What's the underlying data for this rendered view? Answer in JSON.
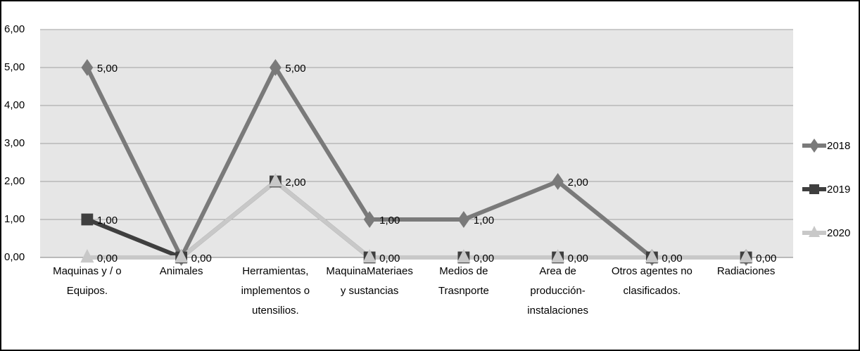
{
  "chart_data": {
    "type": "line",
    "categories": [
      "Maquinas y / o Equipos.",
      "Animales",
      "Herramientas, implementos o utensilios.",
      "MaquinaMateriaes y sustancias",
      "Medios de Trasnporte",
      "Area de producción- instalaciones",
      "Otros agentes no clasificados.",
      "Radiaciones"
    ],
    "series": [
      {
        "name": "2018",
        "color": "#7a7a7a",
        "marker": "diamond",
        "values": [
          5,
          0,
          5,
          1,
          1,
          2,
          0,
          0
        ],
        "value_labels": [
          "5,00",
          null,
          "5,00",
          "1,00",
          "1,00",
          "2,00",
          null,
          null
        ]
      },
      {
        "name": "2019",
        "color": "#3f3f3f",
        "marker": "square",
        "values": [
          1,
          0,
          2,
          0,
          0,
          0,
          0,
          0
        ],
        "value_labels": [
          "1,00",
          null,
          "2,00",
          null,
          null,
          null,
          null,
          null
        ]
      },
      {
        "name": "2020",
        "color": "#c8c8c8",
        "marker": "triangle",
        "values": [
          0,
          0,
          2,
          0,
          0,
          0,
          0,
          0
        ],
        "value_labels": [
          "0,00",
          "0,00",
          null,
          "0,00",
          "0,00",
          "0,00",
          "0,00",
          "0,00"
        ]
      }
    ],
    "ylim": [
      0,
      6
    ],
    "yticks": [
      {
        "value": 0,
        "label": "0,00"
      },
      {
        "value": 1,
        "label": "1,00"
      },
      {
        "value": 2,
        "label": "2,00"
      },
      {
        "value": 3,
        "label": "3,00"
      },
      {
        "value": 4,
        "label": "4,00"
      },
      {
        "value": 5,
        "label": "5,00"
      },
      {
        "value": 6,
        "label": "6,00"
      }
    ],
    "grid": true,
    "legend": "right"
  }
}
